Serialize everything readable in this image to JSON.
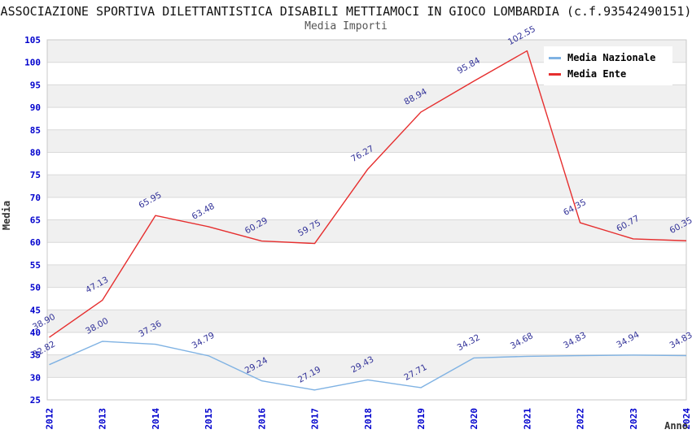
{
  "chart_data": {
    "type": "line",
    "title": "ASSOCIAZIONE SPORTIVA DILETTANTISTICA DISABILI METTIAMOCI IN GIOCO LOMBARDIA (c.f.93542490151)",
    "subtitle": "Media Importi",
    "xlabel": "Anno",
    "ylabel": "Media",
    "x": [
      "2012",
      "2013",
      "2014",
      "2015",
      "2016",
      "2017",
      "2018",
      "2019",
      "2020",
      "2021",
      "2022",
      "2023",
      "2024"
    ],
    "ylim": [
      25,
      105
    ],
    "ytick_step": 5,
    "grid": true,
    "band_fill": true,
    "legend_position": "top-right",
    "series": [
      {
        "name": "Media Nazionale",
        "color": "#7fb2e3",
        "values": [
          32.82,
          38.0,
          37.36,
          34.79,
          29.24,
          27.19,
          29.43,
          27.71,
          34.32,
          34.68,
          34.83,
          34.94,
          34.83
        ]
      },
      {
        "name": "Media Ente",
        "color": "#e62e2e",
        "values": [
          38.9,
          47.13,
          65.95,
          63.48,
          60.29,
          59.75,
          76.27,
          88.94,
          95.84,
          102.55,
          64.35,
          60.77,
          60.35
        ]
      }
    ],
    "colors": {
      "tick_label": "#0000cd",
      "data_label": "#333399",
      "band": "#f0f0f0",
      "grid": "#d9d9d9",
      "border": "#c9c9c9",
      "axis_title": "#333333",
      "title": "#111111",
      "subtitle": "#555555"
    }
  }
}
